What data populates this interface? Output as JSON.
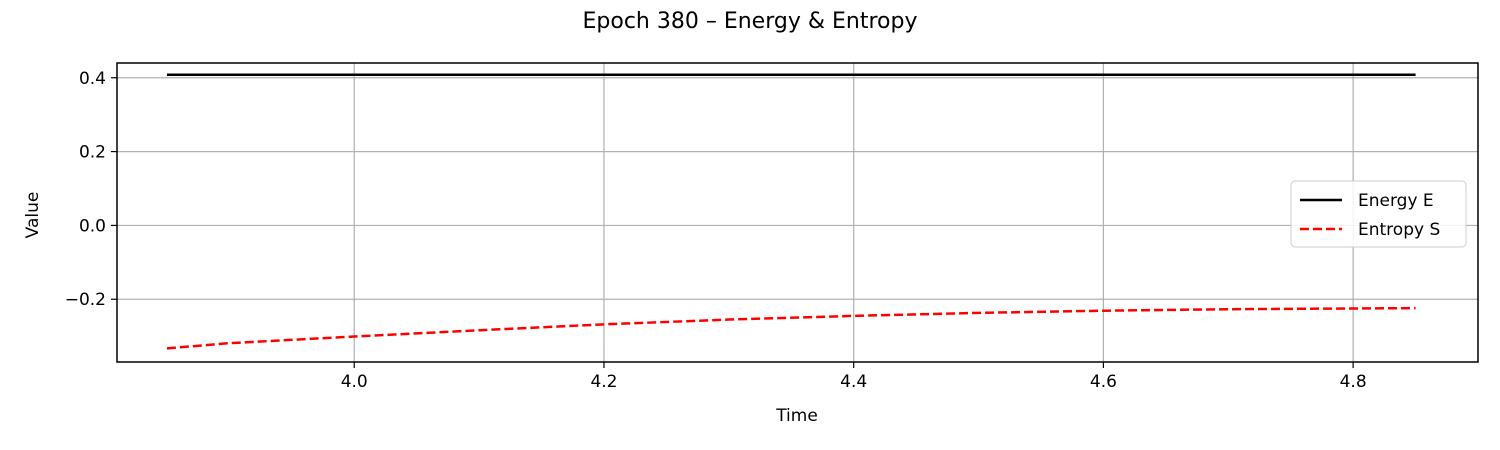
{
  "chart_data": {
    "type": "line",
    "title": "Epoch 380 – Energy & Entropy",
    "xlabel": "Time",
    "ylabel": "Value",
    "xlim": [
      3.81,
      4.9
    ],
    "ylim": [
      -0.37,
      0.44
    ],
    "xticks": [
      4.0,
      4.2,
      4.4,
      4.6,
      4.8
    ],
    "xtick_labels": [
      "4.0",
      "4.2",
      "4.4",
      "4.6",
      "4.8"
    ],
    "yticks": [
      -0.2,
      0.0,
      0.2,
      0.4
    ],
    "ytick_labels": [
      "−0.2",
      "0.0",
      "0.2",
      "0.4"
    ],
    "grid": true,
    "legend_position": "center-right",
    "series": [
      {
        "name": "Energy E",
        "color": "#000000",
        "style": "solid",
        "x": [
          3.85,
          4.0,
          4.2,
          4.4,
          4.6,
          4.8,
          4.85
        ],
        "y": [
          0.408,
          0.408,
          0.408,
          0.408,
          0.408,
          0.408,
          0.408
        ]
      },
      {
        "name": "Entropy S",
        "color": "#ff0000",
        "style": "dashed",
        "x": [
          3.85,
          3.9,
          4.0,
          4.1,
          4.2,
          4.3,
          4.4,
          4.5,
          4.6,
          4.7,
          4.8,
          4.85
        ],
        "y": [
          -0.333,
          -0.319,
          -0.301,
          -0.284,
          -0.268,
          -0.255,
          -0.245,
          -0.237,
          -0.231,
          -0.227,
          -0.225,
          -0.224
        ]
      }
    ]
  }
}
